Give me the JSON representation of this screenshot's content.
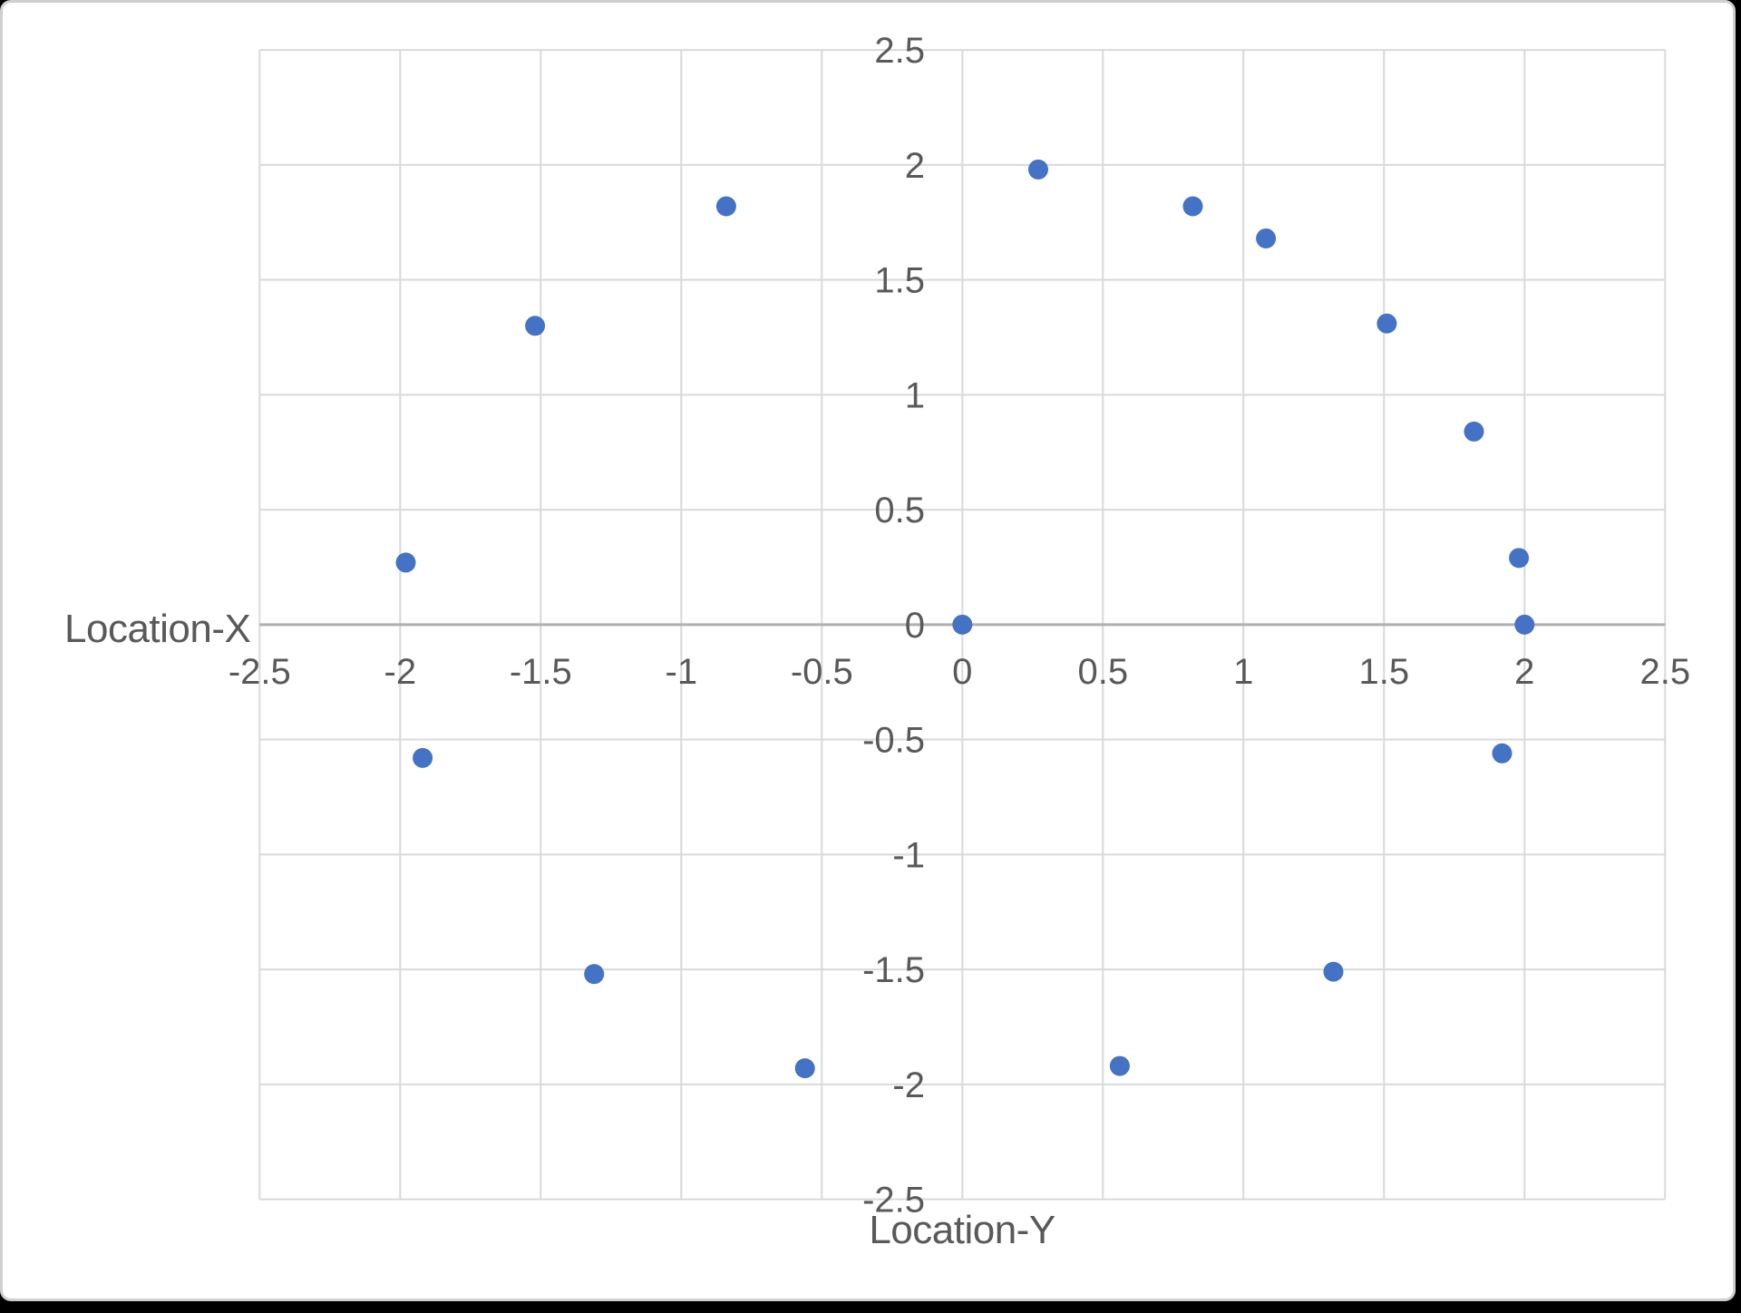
{
  "chart_data": {
    "type": "scatter",
    "title": "",
    "xlabel": "Location-Y",
    "ylabel": "Location-X",
    "xlim": [
      -2.5,
      2.5
    ],
    "ylim": [
      -2.5,
      2.5
    ],
    "x_ticks": [
      -2.5,
      -2,
      -1.5,
      -1,
      -0.5,
      0,
      0.5,
      1,
      1.5,
      2,
      2.5
    ],
    "y_ticks": [
      -2.5,
      -2,
      -1.5,
      -1,
      -0.5,
      0,
      0.5,
      1,
      1.5,
      2,
      2.5
    ],
    "grid": true,
    "legend": false,
    "series_count": 1,
    "points": [
      [
        0.27,
        1.98
      ],
      [
        0.82,
        1.82
      ],
      [
        1.08,
        1.68
      ],
      [
        1.51,
        1.31
      ],
      [
        1.82,
        0.84
      ],
      [
        1.98,
        0.29
      ],
      [
        2.0,
        0.0
      ],
      [
        1.92,
        -0.56
      ],
      [
        1.32,
        -1.51
      ],
      [
        0.56,
        -1.92
      ],
      [
        -0.56,
        -1.93
      ],
      [
        -1.31,
        -1.52
      ],
      [
        -1.92,
        -0.58
      ],
      [
        -1.98,
        0.27
      ],
      [
        -1.52,
        1.3
      ],
      [
        -0.84,
        1.82
      ],
      [
        0.0,
        0.0
      ]
    ],
    "colors": {
      "marker": "#4472C4",
      "gridline": "#D9D9D9",
      "zero_axis_line": "#AFAFAF",
      "text": "#595959",
      "plot_background": "#FFFFFF",
      "frame_border": "#CFCFCF",
      "page_background": "#000000"
    }
  }
}
